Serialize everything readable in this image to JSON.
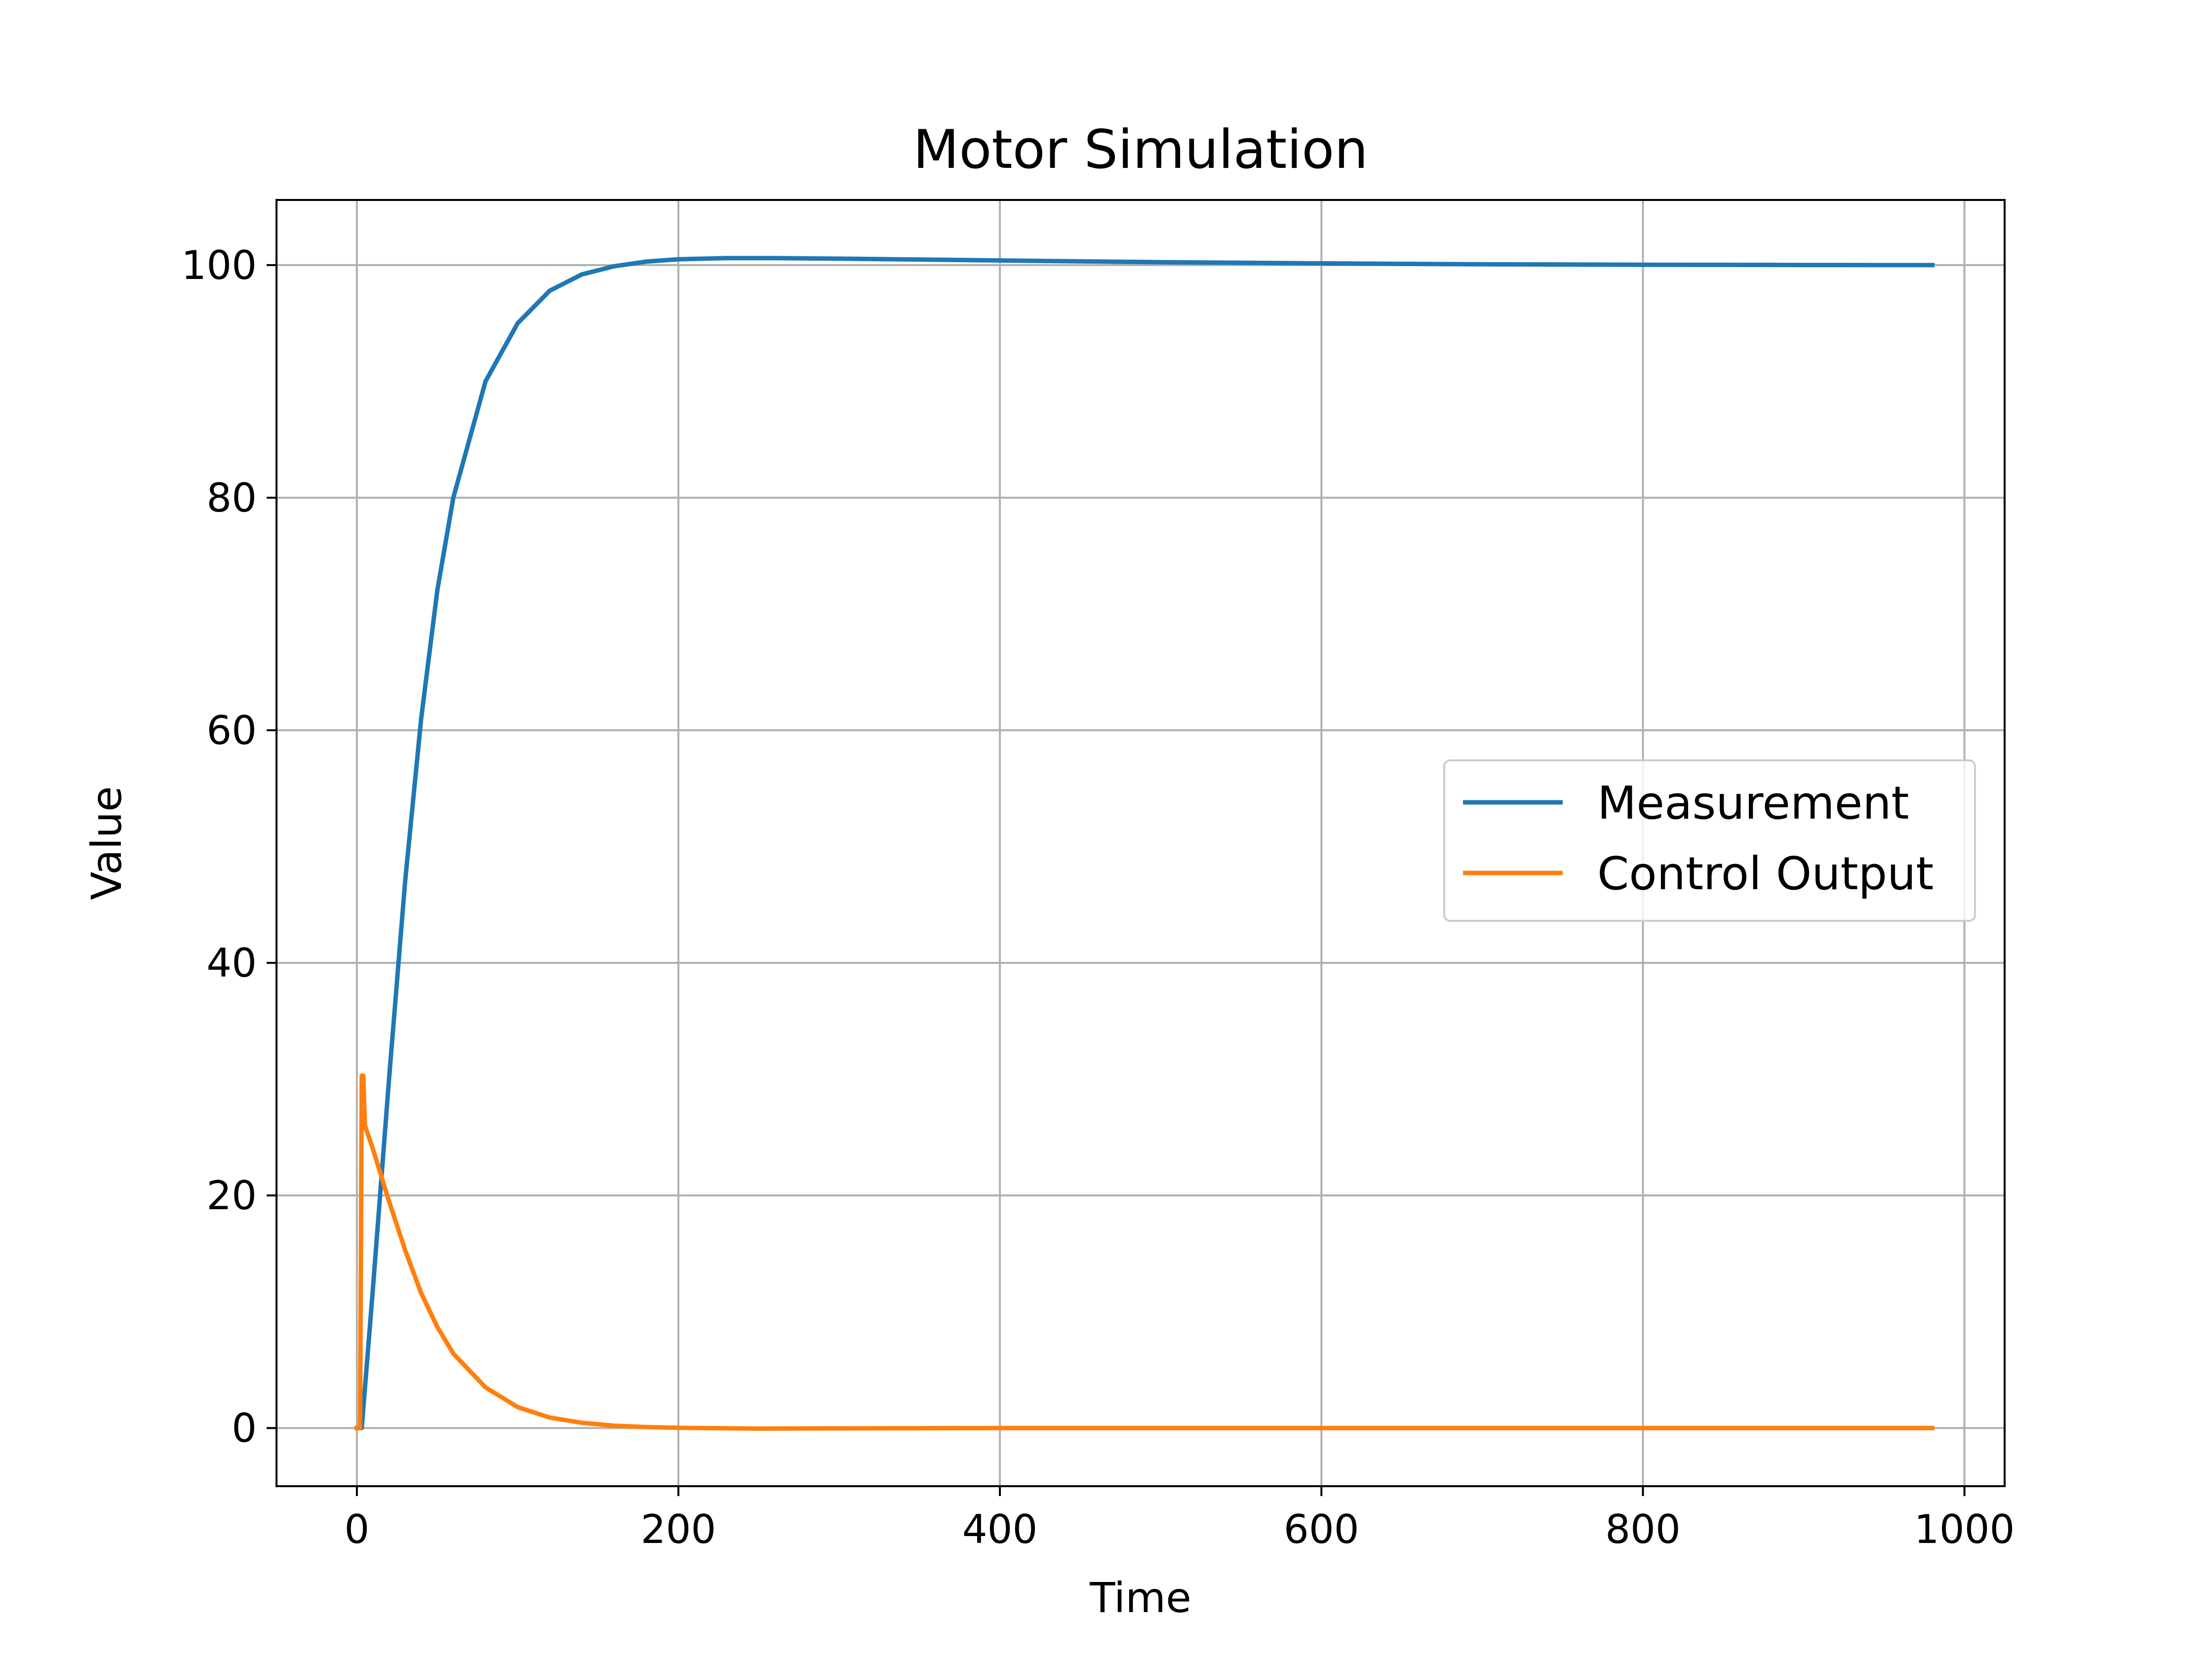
{
  "chart_data": {
    "type": "line",
    "title": "Motor Simulation",
    "xlabel": "Time",
    "ylabel": "Value",
    "xlim": [
      -50,
      1025
    ],
    "ylim": [
      -5,
      105.6
    ],
    "xticks": [
      0,
      200,
      400,
      600,
      800,
      1000
    ],
    "yticks": [
      0,
      20,
      40,
      60,
      80,
      100
    ],
    "xtick_labels": [
      "0",
      "200",
      "400",
      "600",
      "800",
      "1000"
    ],
    "ytick_labels": [
      "0",
      "20",
      "40",
      "60",
      "80",
      "100"
    ],
    "grid": true,
    "legend_position": "center-right",
    "series": [
      {
        "name": "Measurement",
        "color": "#1f77b4",
        "x": [
          0,
          3,
          10,
          20,
          30,
          40,
          50,
          60,
          80,
          100,
          120,
          140,
          160,
          180,
          200,
          230,
          260,
          300,
          400,
          500,
          600,
          700,
          800,
          900,
          980
        ],
        "y": [
          0,
          0,
          12,
          30,
          47,
          61,
          72,
          80,
          90,
          95,
          97.8,
          99.2,
          99.9,
          100.3,
          100.5,
          100.6,
          100.6,
          100.55,
          100.4,
          100.25,
          100.15,
          100.07,
          100.03,
          100.01,
          100.0
        ]
      },
      {
        "name": "Control Output",
        "color": "#ff7f0e",
        "x": [
          0,
          2,
          3,
          4,
          5,
          10,
          20,
          30,
          40,
          50,
          60,
          80,
          100,
          120,
          140,
          160,
          180,
          200,
          250,
          300,
          400,
          600,
          800,
          980
        ],
        "y": [
          0,
          0,
          30.3,
          30.3,
          26,
          24,
          19.5,
          15.3,
          11.6,
          8.7,
          6.4,
          3.5,
          1.8,
          0.9,
          0.45,
          0.2,
          0.08,
          0.02,
          -0.05,
          -0.03,
          0,
          0,
          0,
          0
        ]
      }
    ]
  }
}
